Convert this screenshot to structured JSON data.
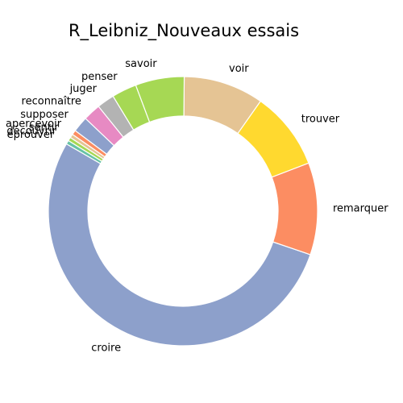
{
  "chart_data": {
    "type": "pie",
    "donut": true,
    "title": "R_Leibniz_Nouveaux essais",
    "start_angle_deg": 150,
    "direction": "counterclockwise",
    "slices": [
      {
        "label": "croire",
        "value": 48.0,
        "color": "#8da0cb"
      },
      {
        "label": "remarquer",
        "value": 10.0,
        "color": "#fc8d62"
      },
      {
        "label": "trouver",
        "value": 8.5,
        "color": "#ffd92f"
      },
      {
        "label": "voir",
        "value": 8.7,
        "color": "#e5c494"
      },
      {
        "label": "savoir",
        "value": 5.3,
        "color": "#a6d854"
      },
      {
        "label": "penser",
        "value": 2.7,
        "color": "#a6d854"
      },
      {
        "label": "juger",
        "value": 1.9,
        "color": "#b3b3b3"
      },
      {
        "label": "reconnaître",
        "value": 1.9,
        "color": "#e78ac3"
      },
      {
        "label": "supposer",
        "value": 1.7,
        "color": "#8da0cb"
      },
      {
        "label": "apercevoir",
        "value": 0.5,
        "color": "#fc8d62"
      },
      {
        "label": "sentir",
        "value": 0.4,
        "color": "#e5c494"
      },
      {
        "label": "découvrir",
        "value": 0.4,
        "color": "#a6d854"
      },
      {
        "label": "éprouver",
        "value": 0.4,
        "color": "#66c2a5"
      }
    ]
  }
}
